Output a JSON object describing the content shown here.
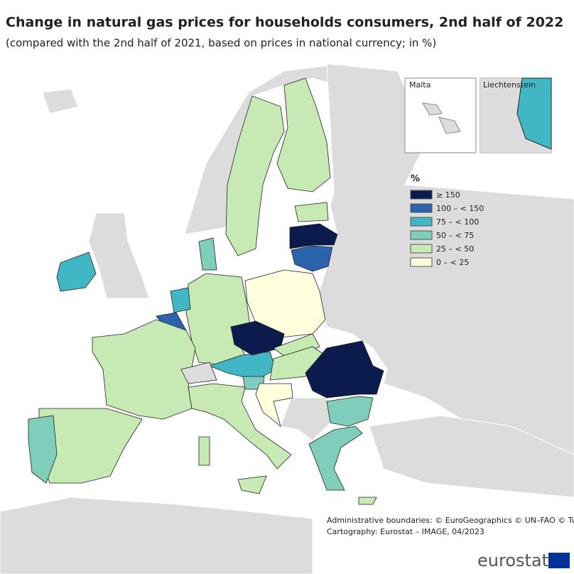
{
  "header": {
    "title": "Change in natural gas prices for households consumers, 2nd half of 2022",
    "subtitle": "(compared with the 2nd half of 2021, based on prices in national currency; in %)"
  },
  "insets": [
    "Malta",
    "Liechtenstein"
  ],
  "legend": {
    "title": "%",
    "items": [
      {
        "label": "≥ 150",
        "color": "#0c1b4d"
      },
      {
        "label": "100 – < 150",
        "color": "#2b63ad"
      },
      {
        "label": "75 – < 100",
        "color": "#41b6c4"
      },
      {
        "label": "50 – < 75",
        "color": "#7fcdbb"
      },
      {
        "label": "25 – < 50",
        "color": "#c7e9b4"
      },
      {
        "label": "0 – < 25",
        "color": "#ffffdd"
      }
    ]
  },
  "credits": [
    "Administrative boundaries: © EuroGeographics © UN–FAO © Turkstat",
    "Cartography: Eurostat – IMAGE, 04/2023"
  ],
  "logo": "eurostat"
}
